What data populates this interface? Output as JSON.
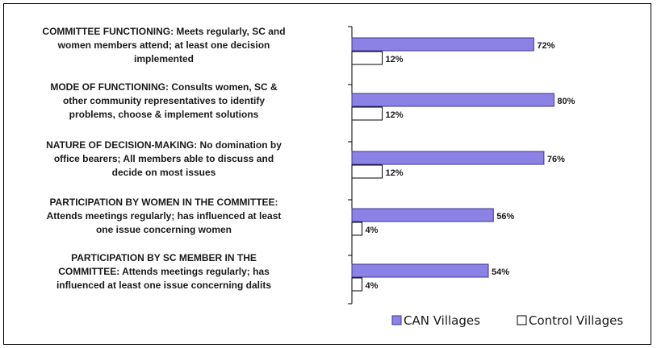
{
  "chart_data": {
    "type": "bar",
    "orientation": "horizontal",
    "categories": [
      [
        "COMMITTEE FUNCTIONING: Meets regularly, SC and",
        "women members attend; at least one decision",
        "implemented"
      ],
      [
        "MODE OF FUNCTIONING: Consults women, SC &",
        "other community representatives to identify",
        "problems, choose & implement solutions"
      ],
      [
        "NATURE OF DECISION-MAKING: No domination by",
        "office bearers; All members able to discuss and",
        "decide on most issues"
      ],
      [
        "PARTICIPATION BY WOMEN IN THE COMMITTEE:",
        "Attends meetings regularly; has influenced at least",
        "one issue concerning women"
      ],
      [
        "PARTICIPATION BY SC MEMBER IN THE",
        "COMMITTEE: Attends meetings regularly; has",
        "influenced at least one issue concerning dalits"
      ]
    ],
    "series": [
      {
        "name": "CAN Villages",
        "values": [
          72,
          80,
          76,
          56,
          54
        ],
        "labels": [
          "72%",
          "80%",
          "76%",
          "56%",
          "54%"
        ],
        "color": "#8c82e6",
        "stroke": "#3b3590"
      },
      {
        "name": "Control Villages",
        "values": [
          12,
          12,
          12,
          4,
          4
        ],
        "labels": [
          "12%",
          "12%",
          "12%",
          "4%",
          "4%"
        ],
        "color": "#ffffff",
        "stroke": "#000000"
      }
    ],
    "xlim": [
      0,
      100
    ],
    "grid": false,
    "legend": "bottom-right"
  }
}
